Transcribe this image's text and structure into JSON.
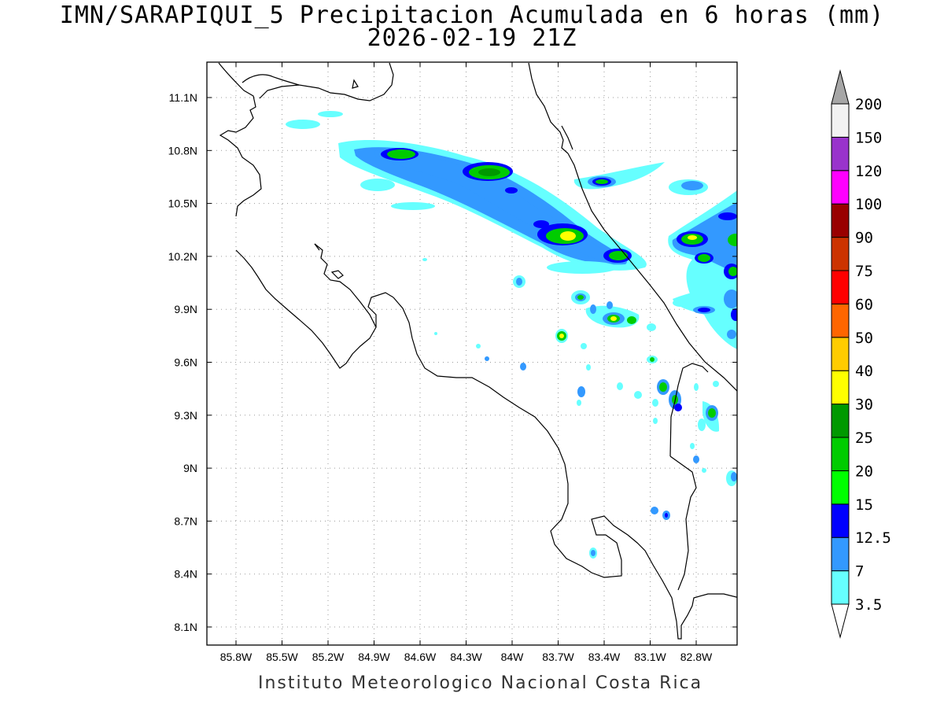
{
  "title": "IMN/SARAPIQUI_5 Precipitacion Acumulada en 6 horas (mm)",
  "subtitle": "2026-02-19 21Z",
  "footer": "Instituto Meteorologico Nacional Costa Rica",
  "map": {
    "lon_range": [
      -86.0,
      -82.55
    ],
    "lat_range": [
      7.95,
      11.25
    ],
    "lat_ticks": [
      "11.1N",
      "10.8N",
      "10.5N",
      "10.2N",
      "9.9N",
      "9.6N",
      "9.3N",
      "9N",
      "8.7N",
      "8.4N",
      "8.1N"
    ],
    "lon_ticks": [
      "85.8W",
      "85.5W",
      "85.2W",
      "84.9W",
      "84.6W",
      "84.3W",
      "84W",
      "83.7W",
      "83.4W",
      "83.1W",
      "82.8W"
    ],
    "grid": "dotted"
  },
  "colorbar": {
    "labels": [
      "3.5",
      "7",
      "12.5",
      "15",
      "20",
      "25",
      "30",
      "40",
      "50",
      "60",
      "75",
      "90",
      "100",
      "120",
      "150",
      "200"
    ],
    "colors": [
      "#66ffff",
      "#3399ff",
      "#0000ff",
      "#00ff00",
      "#00cc00",
      "#009900",
      "#ffff00",
      "#ffcc00",
      "#ff6600",
      "#ff0000",
      "#cc3300",
      "#990000",
      "#ff00ff",
      "#9933cc",
      "#f2f2f2"
    ],
    "over_color": "#a6a6a6",
    "under_color": "#ffffff"
  }
}
